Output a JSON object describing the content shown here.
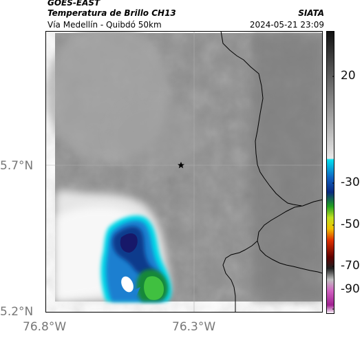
{
  "header": {
    "title_line1": "GOES-EAST",
    "title_line2": "Temperatura de Brillo CH13",
    "subtitle": "Vía Medellín - Quibdó 50km",
    "organization": "SIATA",
    "timestamp": "2024-05-21 23:09"
  },
  "map": {
    "y_ticks": [
      {
        "label": "5.7°N",
        "value": 5.7
      },
      {
        "label": "5.2°N",
        "value": 5.2
      }
    ],
    "x_ticks": [
      {
        "label": "76.8°W",
        "value": -76.8
      },
      {
        "label": "76.3°W",
        "value": -76.3
      }
    ],
    "marker": "star-icon",
    "colors": {
      "background_gray": "#8c8c8c",
      "border_line": "#000000",
      "cold_cloud_blue": "#1060b0",
      "cold_core_green": "#20a020"
    }
  },
  "colorbar": {
    "ticks": [
      {
        "label": "20",
        "value": 20
      },
      {
        "label": "-30",
        "value": -30
      },
      {
        "label": "-50",
        "value": -50
      },
      {
        "label": "-70",
        "value": -70
      },
      {
        "label": "-90",
        "value": -90
      }
    ]
  }
}
